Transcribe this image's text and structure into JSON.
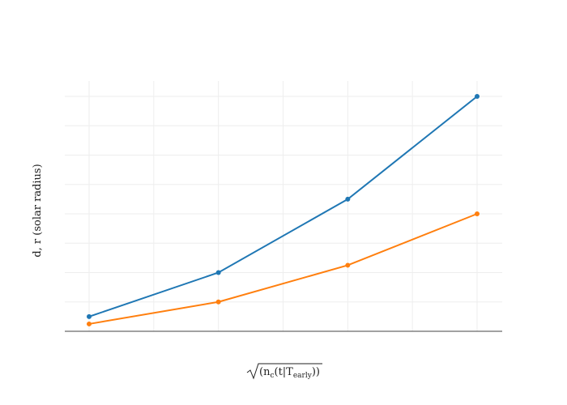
{
  "chart_data": {
    "type": "line",
    "title": "",
    "xlabel": "√(n_c(t|T_early))",
    "ylabel": "d, r (solar radius)",
    "x": [
      1,
      2,
      3,
      4
    ],
    "ylim": [
      0,
      8
    ],
    "grid": true,
    "series": [
      {
        "values": [
          0.5,
          2.0,
          4.5,
          8.0
        ],
        "color": "#1f77b4"
      },
      {
        "values": [
          0.25,
          1.0,
          2.25,
          4.0
        ],
        "color": "#ff7f0e"
      }
    ]
  }
}
